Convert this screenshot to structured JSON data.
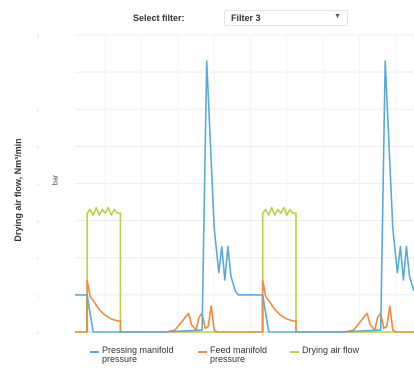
{
  "filter": {
    "label": "Select filter:",
    "selected": "Filter 3"
  },
  "colors": {
    "pressing": "#5aa9d9",
    "feed": "#f08a3c",
    "air": "#b9cf45",
    "green_marker": "#2e9e62",
    "grid": "#eeeeee",
    "axis": "#cccccc"
  },
  "chart_data": {
    "type": "line",
    "ylabel": "Drying air flow, Nm³/min",
    "yunit": "bar",
    "legend_placement": "bottom",
    "grid": true,
    "series": [
      {
        "name": "Pressing manifold pressure",
        "color": "#5aa9d9",
        "points": [
          [
            0,
            1
          ],
          [
            4,
            1
          ],
          [
            4,
            1
          ],
          [
            6,
            0
          ],
          [
            30,
            0
          ],
          [
            34,
            0.02
          ],
          [
            42,
            0.05
          ],
          [
            43.5,
            7.3
          ],
          [
            46,
            2.8
          ],
          [
            47.5,
            1.6
          ],
          [
            48.5,
            2.3
          ],
          [
            49.5,
            1.4
          ],
          [
            50.5,
            2.3
          ],
          [
            51.5,
            1.5
          ],
          [
            53,
            1.1
          ],
          [
            54,
            1
          ],
          [
            62,
            1
          ],
          [
            62,
            1
          ],
          [
            64,
            0
          ],
          [
            89,
            0
          ],
          [
            93,
            0.02
          ],
          [
            101,
            0.05
          ],
          [
            102.5,
            7.3
          ],
          [
            105,
            2.8
          ],
          [
            106.5,
            1.6
          ],
          [
            107.5,
            2.3
          ],
          [
            108.5,
            1.4
          ],
          [
            109.5,
            2.3
          ],
          [
            110.5,
            1.5
          ],
          [
            112,
            1.1
          ]
        ]
      },
      {
        "name": "Feed manifold pressure",
        "color": "#f08a3c",
        "points": [
          [
            0,
            0
          ],
          [
            4,
            0
          ],
          [
            4,
            1.4
          ],
          [
            5,
            0.95
          ],
          [
            6,
            0.85
          ],
          [
            8,
            0.6
          ],
          [
            10,
            0.45
          ],
          [
            12,
            0.35
          ],
          [
            14,
            0.3
          ],
          [
            15,
            0.3
          ],
          [
            15,
            0
          ],
          [
            24,
            0
          ],
          [
            30,
            0
          ],
          [
            33,
            0.05
          ],
          [
            36,
            0.35
          ],
          [
            37.5,
            0.5
          ],
          [
            38.5,
            0.2
          ],
          [
            40,
            0.05
          ],
          [
            41,
            0.4
          ],
          [
            42,
            0.5
          ],
          [
            43,
            0.1
          ],
          [
            44,
            0.15
          ],
          [
            45,
            0.7
          ],
          [
            46,
            0.05
          ],
          [
            47,
            0
          ],
          [
            62,
            0
          ],
          [
            62,
            1.4
          ],
          [
            63,
            0.95
          ],
          [
            64,
            0.85
          ],
          [
            66,
            0.6
          ],
          [
            68,
            0.45
          ],
          [
            70,
            0.35
          ],
          [
            72,
            0.3
          ],
          [
            73,
            0.3
          ],
          [
            73,
            0
          ],
          [
            82,
            0
          ],
          [
            89,
            0
          ],
          [
            92,
            0.05
          ],
          [
            95,
            0.35
          ],
          [
            96.5,
            0.5
          ],
          [
            97.5,
            0.2
          ],
          [
            99,
            0.05
          ],
          [
            100,
            0.4
          ],
          [
            101,
            0.5
          ],
          [
            102,
            0.1
          ],
          [
            103,
            0.15
          ],
          [
            104,
            0.7
          ],
          [
            105,
            0.05
          ],
          [
            106,
            0
          ],
          [
            112,
            0
          ]
        ]
      },
      {
        "name": "Drying air flow",
        "color": "#b9cf45",
        "points": [
          [
            0,
            0
          ],
          [
            4,
            0
          ],
          [
            4,
            3.2
          ],
          [
            5,
            3.3
          ],
          [
            6,
            3.15
          ],
          [
            7,
            3.35
          ],
          [
            8,
            3.15
          ],
          [
            9,
            3.3
          ],
          [
            10,
            3.2
          ],
          [
            11,
            3.35
          ],
          [
            12,
            3.15
          ],
          [
            13,
            3.3
          ],
          [
            14,
            3.2
          ],
          [
            15,
            3.2
          ],
          [
            15,
            0
          ],
          [
            62,
            0
          ],
          [
            62,
            3.2
          ],
          [
            63,
            3.3
          ],
          [
            64,
            3.15
          ],
          [
            65,
            3.35
          ],
          [
            66,
            3.15
          ],
          [
            67,
            3.3
          ],
          [
            68,
            3.2
          ],
          [
            69,
            3.35
          ],
          [
            70,
            3.15
          ],
          [
            71,
            3.3
          ],
          [
            72,
            3.2
          ],
          [
            73,
            3.2
          ],
          [
            73,
            0
          ],
          [
            112,
            0
          ]
        ]
      }
    ],
    "markers": [
      {
        "x": 4,
        "from": 0,
        "to": 1,
        "color": "#2e9e62"
      },
      {
        "x": 62,
        "from": 0,
        "to": 1,
        "color": "#2e9e62"
      }
    ],
    "xlim": [
      0,
      112
    ],
    "ylim": [
      0,
      8
    ]
  }
}
